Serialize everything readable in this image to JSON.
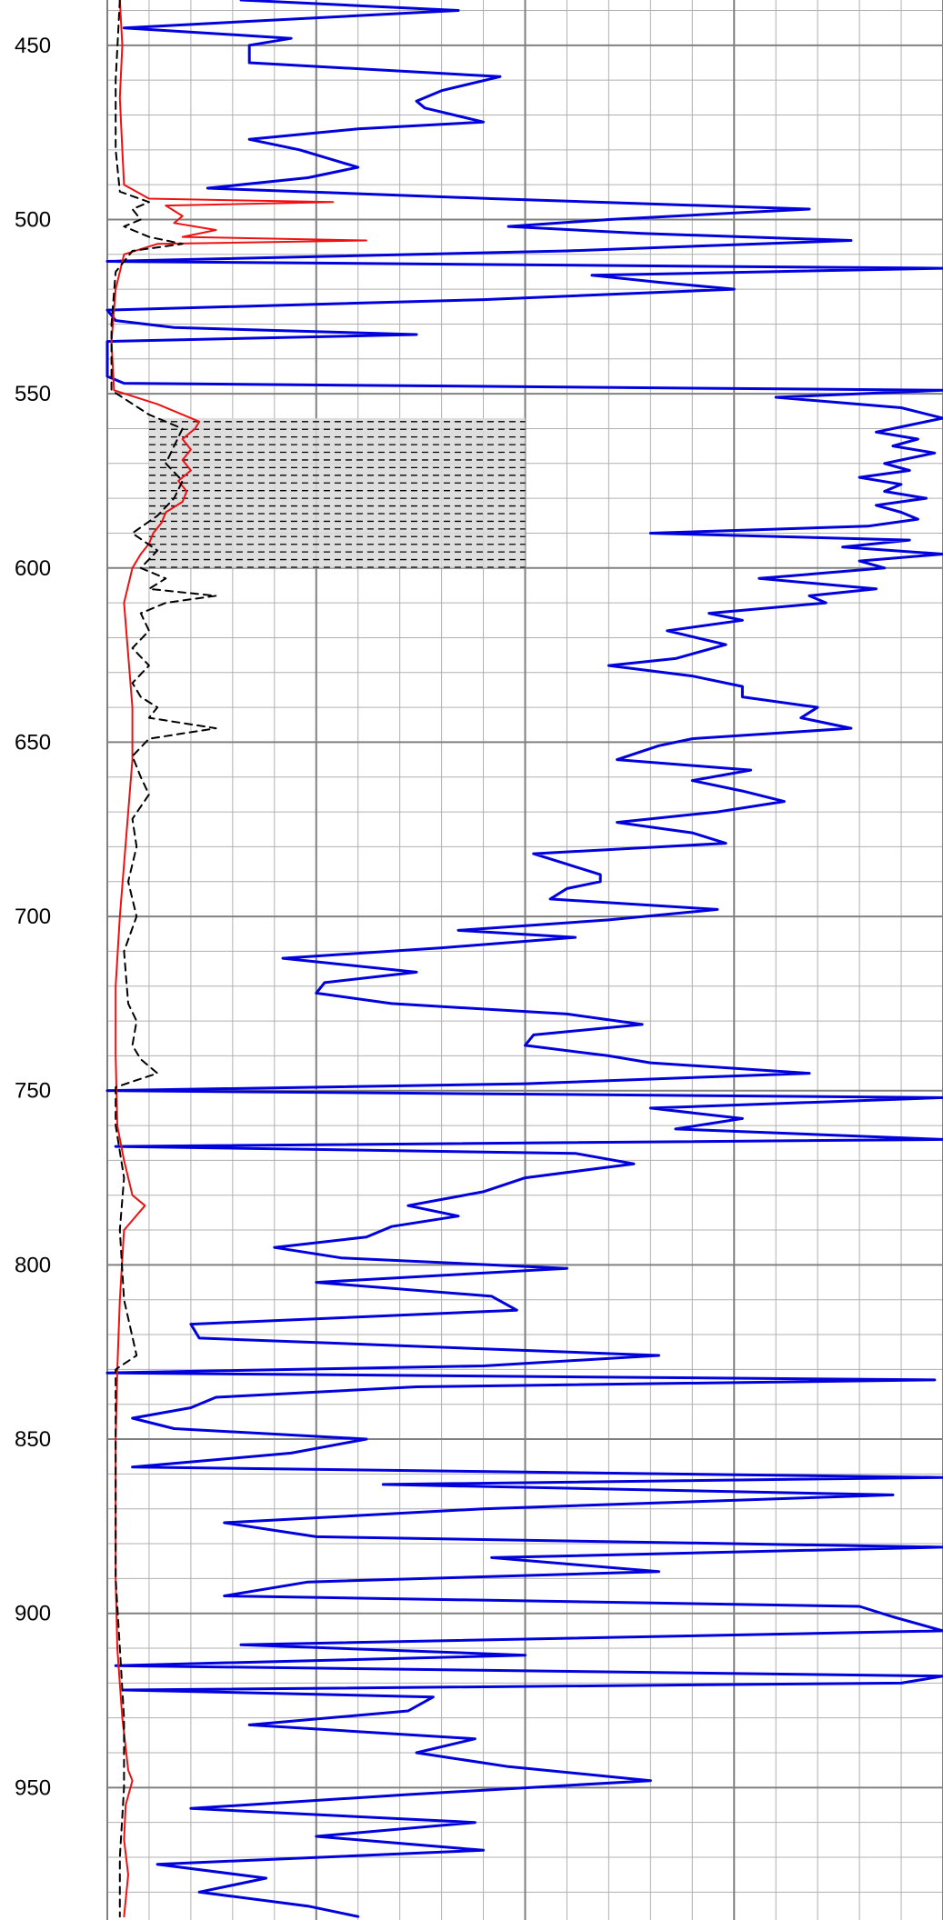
{
  "chart_data": {
    "type": "line",
    "title": "",
    "xlabel": "",
    "ylabel": "",
    "ylim": [
      437,
      988
    ],
    "depth_ticks": [
      450,
      500,
      550,
      600,
      650,
      700,
      750,
      800,
      850,
      900,
      950
    ],
    "depth_tick_labels": [
      "450",
      "500",
      "550",
      "600",
      "650",
      "700",
      "750",
      "800",
      "850",
      "900",
      "950"
    ],
    "xlim": [
      0,
      10
    ],
    "major_gridlines_x": [
      0,
      2.5,
      5,
      7.5,
      10
    ],
    "grid": true,
    "colors": {
      "blue": "#0000dd",
      "red": "#ee1111",
      "black_dashed": "#000000",
      "grid_minor": "#b0b0b0",
      "grid_major": "#808080",
      "shaded_zone": "#d8d8d8"
    },
    "shaded_zones": [
      {
        "top": 557,
        "base": 600,
        "x_from": 0.5,
        "x_to": 5.0
      }
    ],
    "series": [
      {
        "key": "blue",
        "style": "solid",
        "points": [
          [
            437,
            1.6
          ],
          [
            440,
            4.2
          ],
          [
            445,
            0.2
          ],
          [
            448,
            2.2
          ],
          [
            450,
            1.7
          ],
          [
            455,
            1.7
          ],
          [
            459,
            4.7
          ],
          [
            463,
            4.0
          ],
          [
            466,
            3.7
          ],
          [
            468,
            3.8
          ],
          [
            472,
            4.5
          ],
          [
            474,
            3.0
          ],
          [
            477,
            1.7
          ],
          [
            480,
            2.3
          ],
          [
            485,
            3.0
          ],
          [
            488,
            2.4
          ],
          [
            491,
            1.2
          ],
          [
            494,
            4.6
          ],
          [
            497,
            8.4
          ],
          [
            500,
            6.0
          ],
          [
            502,
            4.8
          ],
          [
            504,
            6.4
          ],
          [
            506,
            8.9
          ],
          [
            509,
            5.5
          ],
          [
            512,
            0.0
          ],
          [
            514,
            10.0
          ],
          [
            516,
            5.8
          ],
          [
            518,
            6.6
          ],
          [
            520,
            7.5
          ],
          [
            523,
            4.5
          ],
          [
            526,
            0.0
          ],
          [
            529,
            0.1
          ],
          [
            531,
            0.8
          ],
          [
            533,
            3.7
          ],
          [
            535,
            0.0
          ],
          [
            545,
            0.0
          ],
          [
            547,
            0.2
          ],
          [
            549,
            10.0
          ],
          [
            551,
            8.0
          ],
          [
            554,
            9.5
          ],
          [
            557,
            10.0
          ],
          [
            559,
            9.6
          ],
          [
            561,
            9.2
          ],
          [
            563,
            9.7
          ],
          [
            565,
            9.4
          ],
          [
            567,
            9.9
          ],
          [
            570,
            9.3
          ],
          [
            572,
            9.6
          ],
          [
            574,
            9.0
          ],
          [
            576,
            9.5
          ],
          [
            578,
            9.3
          ],
          [
            580,
            9.8
          ],
          [
            582,
            9.2
          ],
          [
            584,
            9.5
          ],
          [
            586,
            9.7
          ],
          [
            588,
            9.1
          ],
          [
            590,
            6.5
          ],
          [
            592,
            9.6
          ],
          [
            594,
            8.8
          ],
          [
            596,
            10.0
          ],
          [
            598,
            9.0
          ],
          [
            600,
            9.3
          ],
          [
            603,
            7.8
          ],
          [
            606,
            9.2
          ],
          [
            608,
            8.4
          ],
          [
            610,
            8.6
          ],
          [
            613,
            7.2
          ],
          [
            615,
            7.6
          ],
          [
            618,
            6.7
          ],
          [
            622,
            7.4
          ],
          [
            626,
            6.8
          ],
          [
            628,
            6.0
          ],
          [
            631,
            7.0
          ],
          [
            634,
            7.6
          ],
          [
            637,
            7.6
          ],
          [
            640,
            8.5
          ],
          [
            643,
            8.3
          ],
          [
            646,
            8.9
          ],
          [
            649,
            7.0
          ],
          [
            651,
            6.6
          ],
          [
            655,
            6.1
          ],
          [
            658,
            7.7
          ],
          [
            661,
            7.0
          ],
          [
            664,
            7.6
          ],
          [
            667,
            8.1
          ],
          [
            670,
            7.3
          ],
          [
            673,
            6.1
          ],
          [
            676,
            7.0
          ],
          [
            679,
            7.4
          ],
          [
            682,
            5.1
          ],
          [
            685,
            5.5
          ],
          [
            688,
            5.9
          ],
          [
            690,
            5.9
          ],
          [
            692,
            5.5
          ],
          [
            695,
            5.3
          ],
          [
            698,
            7.3
          ],
          [
            701,
            6.0
          ],
          [
            704,
            4.2
          ],
          [
            706,
            5.6
          ],
          [
            709,
            4.0
          ],
          [
            712,
            2.1
          ],
          [
            716,
            3.7
          ],
          [
            719,
            2.6
          ],
          [
            722,
            2.5
          ],
          [
            725,
            3.4
          ],
          [
            728,
            5.5
          ],
          [
            731,
            6.4
          ],
          [
            734,
            5.1
          ],
          [
            737,
            5.0
          ],
          [
            740,
            6.0
          ],
          [
            742,
            6.5
          ],
          [
            745,
            8.4
          ],
          [
            748,
            5.0
          ],
          [
            750,
            0.0
          ],
          [
            752,
            10.0
          ],
          [
            755,
            6.5
          ],
          [
            758,
            7.6
          ],
          [
            761,
            6.8
          ],
          [
            764,
            10.0
          ],
          [
            766,
            0.1
          ],
          [
            768,
            5.6
          ],
          [
            771,
            6.3
          ],
          [
            775,
            5.0
          ],
          [
            779,
            4.5
          ],
          [
            783,
            3.6
          ],
          [
            786,
            4.2
          ],
          [
            789,
            3.4
          ],
          [
            792,
            3.1
          ],
          [
            795,
            2.0
          ],
          [
            798,
            2.8
          ],
          [
            801,
            5.5
          ],
          [
            805,
            2.5
          ],
          [
            809,
            4.6
          ],
          [
            813,
            4.9
          ],
          [
            817,
            1.0
          ],
          [
            821,
            1.1
          ],
          [
            826,
            6.6
          ],
          [
            829,
            4.5
          ],
          [
            831,
            0.0
          ],
          [
            833,
            9.9
          ],
          [
            835,
            3.7
          ],
          [
            838,
            1.3
          ],
          [
            841,
            1.0
          ],
          [
            844,
            0.3
          ],
          [
            847,
            0.8
          ],
          [
            850,
            3.1
          ],
          [
            854,
            2.2
          ],
          [
            858,
            0.3
          ],
          [
            861,
            10.0
          ],
          [
            863,
            3.3
          ],
          [
            866,
            9.4
          ],
          [
            870,
            4.5
          ],
          [
            874,
            1.4
          ],
          [
            878,
            2.5
          ],
          [
            881,
            10.0
          ],
          [
            884,
            4.6
          ],
          [
            888,
            6.6
          ],
          [
            891,
            2.4
          ],
          [
            895,
            1.4
          ],
          [
            898,
            9.0
          ],
          [
            901,
            9.4
          ],
          [
            905,
            10.0
          ],
          [
            909,
            1.6
          ],
          [
            912,
            5.0
          ],
          [
            915,
            0.1
          ],
          [
            918,
            10.0
          ],
          [
            920,
            9.5
          ],
          [
            922,
            0.2
          ],
          [
            924,
            3.9
          ],
          [
            928,
            3.6
          ],
          [
            932,
            1.7
          ],
          [
            936,
            4.4
          ],
          [
            940,
            3.7
          ],
          [
            944,
            4.8
          ],
          [
            948,
            6.5
          ],
          [
            952,
            3.6
          ],
          [
            956,
            1.0
          ],
          [
            960,
            4.4
          ],
          [
            964,
            2.5
          ],
          [
            968,
            4.5
          ],
          [
            972,
            0.6
          ],
          [
            976,
            1.9
          ],
          [
            980,
            1.1
          ],
          [
            984,
            2.4
          ],
          [
            987,
            3.0
          ]
        ]
      },
      {
        "key": "red",
        "style": "solid",
        "points": [
          [
            437,
            0.15
          ],
          [
            450,
            0.18
          ],
          [
            465,
            0.15
          ],
          [
            480,
            0.18
          ],
          [
            490,
            0.2
          ],
          [
            494,
            0.5
          ],
          [
            495,
            2.7
          ],
          [
            496,
            0.7
          ],
          [
            499,
            0.9
          ],
          [
            501,
            0.8
          ],
          [
            503,
            1.3
          ],
          [
            505,
            0.9
          ],
          [
            506,
            3.1
          ],
          [
            507,
            0.6
          ],
          [
            510,
            0.2
          ],
          [
            520,
            0.1
          ],
          [
            535,
            0.05
          ],
          [
            549,
            0.08
          ],
          [
            553,
            0.6
          ],
          [
            556,
            0.9
          ],
          [
            558,
            1.1
          ],
          [
            560,
            1.05
          ],
          [
            563,
            0.9
          ],
          [
            566,
            1.0
          ],
          [
            569,
            0.9
          ],
          [
            572,
            1.0
          ],
          [
            575,
            0.85
          ],
          [
            578,
            0.95
          ],
          [
            581,
            0.9
          ],
          [
            584,
            0.7
          ],
          [
            587,
            0.65
          ],
          [
            590,
            0.55
          ],
          [
            593,
            0.5
          ],
          [
            596,
            0.4
          ],
          [
            600,
            0.3
          ],
          [
            610,
            0.2
          ],
          [
            625,
            0.25
          ],
          [
            640,
            0.3
          ],
          [
            655,
            0.3
          ],
          [
            670,
            0.25
          ],
          [
            685,
            0.2
          ],
          [
            700,
            0.15
          ],
          [
            720,
            0.1
          ],
          [
            740,
            0.1
          ],
          [
            760,
            0.12
          ],
          [
            770,
            0.2
          ],
          [
            780,
            0.3
          ],
          [
            783,
            0.45
          ],
          [
            790,
            0.2
          ],
          [
            810,
            0.15
          ],
          [
            830,
            0.12
          ],
          [
            850,
            0.1
          ],
          [
            870,
            0.1
          ],
          [
            890,
            0.1
          ],
          [
            910,
            0.12
          ],
          [
            930,
            0.18
          ],
          [
            945,
            0.25
          ],
          [
            948,
            0.3
          ],
          [
            955,
            0.22
          ],
          [
            965,
            0.2
          ],
          [
            975,
            0.25
          ],
          [
            987,
            0.2
          ]
        ]
      },
      {
        "key": "black_dashed",
        "style": "dashed",
        "points": [
          [
            437,
            0.15
          ],
          [
            460,
            0.1
          ],
          [
            480,
            0.1
          ],
          [
            492,
            0.15
          ],
          [
            495,
            0.5
          ],
          [
            497,
            0.3
          ],
          [
            500,
            0.4
          ],
          [
            502,
            0.2
          ],
          [
            505,
            0.5
          ],
          [
            507,
            0.9
          ],
          [
            509,
            0.3
          ],
          [
            515,
            0.1
          ],
          [
            530,
            0.05
          ],
          [
            549,
            0.05
          ],
          [
            556,
            0.5
          ],
          [
            560,
            0.9
          ],
          [
            565,
            0.8
          ],
          [
            570,
            0.7
          ],
          [
            575,
            0.9
          ],
          [
            580,
            0.8
          ],
          [
            585,
            0.6
          ],
          [
            590,
            0.3
          ],
          [
            595,
            0.6
          ],
          [
            600,
            0.4
          ],
          [
            603,
            0.7
          ],
          [
            606,
            0.5
          ],
          [
            608,
            1.3
          ],
          [
            610,
            0.7
          ],
          [
            613,
            0.4
          ],
          [
            618,
            0.5
          ],
          [
            623,
            0.3
          ],
          [
            628,
            0.5
          ],
          [
            633,
            0.3
          ],
          [
            637,
            0.4
          ],
          [
            640,
            0.6
          ],
          [
            643,
            0.5
          ],
          [
            646,
            1.3
          ],
          [
            649,
            0.5
          ],
          [
            654,
            0.3
          ],
          [
            660,
            0.4
          ],
          [
            665,
            0.5
          ],
          [
            672,
            0.3
          ],
          [
            680,
            0.35
          ],
          [
            690,
            0.25
          ],
          [
            700,
            0.35
          ],
          [
            710,
            0.2
          ],
          [
            725,
            0.25
          ],
          [
            730,
            0.35
          ],
          [
            737,
            0.3
          ],
          [
            741,
            0.4
          ],
          [
            745,
            0.6
          ],
          [
            749,
            0.1
          ],
          [
            760,
            0.1
          ],
          [
            775,
            0.2
          ],
          [
            790,
            0.15
          ],
          [
            810,
            0.2
          ],
          [
            826,
            0.35
          ],
          [
            830,
            0.1
          ],
          [
            850,
            0.1
          ],
          [
            870,
            0.1
          ],
          [
            890,
            0.1
          ],
          [
            910,
            0.15
          ],
          [
            930,
            0.2
          ],
          [
            950,
            0.2
          ],
          [
            970,
            0.15
          ],
          [
            987,
            0.15
          ]
        ]
      }
    ]
  }
}
